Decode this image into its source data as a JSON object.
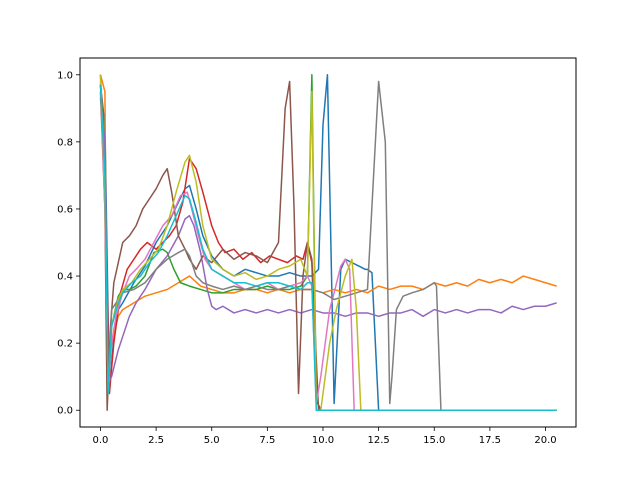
{
  "chart_data": {
    "type": "line",
    "title": "",
    "xlabel": "",
    "ylabel": "",
    "xlim": [
      -0.92,
      21.37
    ],
    "ylim": [
      -0.05,
      1.05
    ],
    "x_ticks": [
      0.0,
      2.5,
      5.0,
      7.5,
      10.0,
      12.5,
      15.0,
      17.5,
      20.0
    ],
    "x_tick_labels": [
      "0.0",
      "2.5",
      "5.0",
      "7.5",
      "10.0",
      "12.5",
      "15.0",
      "17.5",
      "20.0"
    ],
    "y_ticks": [
      0.0,
      0.2,
      0.4,
      0.6,
      0.8,
      1.0
    ],
    "y_tick_labels": [
      "0.0",
      "0.2",
      "0.4",
      "0.6",
      "0.8",
      "1.0"
    ],
    "grid": false,
    "legend": "none",
    "series": [
      {
        "color": "#1f77b4",
        "x": [
          0,
          0.2,
          0.4,
          0.6,
          0.8,
          1.0,
          1.5,
          2.0,
          2.5,
          3.0,
          3.5,
          3.8,
          4.0,
          4.3,
          4.6,
          5.0,
          5.5,
          6.0,
          6.5,
          7.0,
          7.5,
          8.0,
          8.5,
          9.0,
          9.5,
          9.8,
          10.0,
          10.2,
          10.5,
          10.8,
          11.0,
          11.3,
          11.6,
          11.9,
          12.0,
          12.2,
          12.5,
          13,
          14,
          15,
          16,
          17,
          18,
          19,
          20,
          20.5
        ],
        "y": [
          0.97,
          0.85,
          0.05,
          0.22,
          0.3,
          0.32,
          0.38,
          0.43,
          0.5,
          0.55,
          0.62,
          0.66,
          0.67,
          0.6,
          0.52,
          0.46,
          0.42,
          0.4,
          0.42,
          0.41,
          0.4,
          0.4,
          0.41,
          0.4,
          0.4,
          0.42,
          0.85,
          1.0,
          0.02,
          0.42,
          0.45,
          0.44,
          0.43,
          0.42,
          0.42,
          0.41,
          0.0,
          0,
          0,
          0,
          0,
          0,
          0,
          0,
          0,
          0
        ]
      },
      {
        "color": "#ff7f0e",
        "x": [
          0,
          0.2,
          0.3,
          0.5,
          0.8,
          1.0,
          1.5,
          2.0,
          2.5,
          3.0,
          3.5,
          4.0,
          4.5,
          5.0,
          5.5,
          6.0,
          6.5,
          7.0,
          7.5,
          8.0,
          8.5,
          9.0,
          9.5,
          10.0,
          10.5,
          11.0,
          11.5,
          12.0,
          12.5,
          13.0,
          13.5,
          14.0,
          14.5,
          15.0,
          15.5,
          16.0,
          16.5,
          17.0,
          17.5,
          18.0,
          18.5,
          19.0,
          19.5,
          20.0,
          20.5
        ],
        "y": [
          1.0,
          0.95,
          0.05,
          0.2,
          0.28,
          0.3,
          0.32,
          0.34,
          0.35,
          0.36,
          0.38,
          0.4,
          0.37,
          0.36,
          0.35,
          0.35,
          0.36,
          0.36,
          0.35,
          0.36,
          0.35,
          0.36,
          0.36,
          0.35,
          0.36,
          0.35,
          0.36,
          0.35,
          0.37,
          0.36,
          0.37,
          0.37,
          0.36,
          0.38,
          0.37,
          0.38,
          0.37,
          0.39,
          0.38,
          0.39,
          0.38,
          0.4,
          0.39,
          0.38,
          0.37
        ]
      },
      {
        "color": "#2ca02c",
        "x": [
          0,
          0.2,
          0.35,
          0.5,
          0.8,
          1.0,
          1.3,
          1.6,
          2.0,
          2.4,
          2.8,
          3.0,
          3.3,
          3.6,
          4.0,
          4.5,
          5.0,
          5.5,
          6.0,
          6.5,
          7.0,
          7.5,
          8.0,
          8.5,
          9.0,
          9.3,
          9.5,
          9.7,
          9.9,
          10.0,
          10.5,
          11.0,
          11.2,
          11.4,
          11.6,
          12,
          13,
          14,
          15,
          16,
          17,
          18,
          19,
          20,
          20.5
        ],
        "y": [
          0.97,
          0.8,
          0.1,
          0.25,
          0.34,
          0.36,
          0.36,
          0.37,
          0.4,
          0.47,
          0.48,
          0.47,
          0.42,
          0.38,
          0.37,
          0.36,
          0.35,
          0.35,
          0.36,
          0.36,
          0.36,
          0.37,
          0.36,
          0.36,
          0.37,
          0.4,
          1.0,
          0.03,
          0.0,
          0.0,
          0.0,
          0.0,
          0.0,
          0.0,
          0.0,
          0,
          0,
          0,
          0,
          0,
          0,
          0,
          0,
          0,
          0
        ]
      },
      {
        "color": "#d62728",
        "x": [
          0,
          0.2,
          0.4,
          0.6,
          0.9,
          1.2,
          1.5,
          1.8,
          2.1,
          2.5,
          2.8,
          3.1,
          3.4,
          3.7,
          4.0,
          4.3,
          4.6,
          5.0,
          5.3,
          5.6,
          6.0,
          6.4,
          6.8,
          7.2,
          7.6,
          8.0,
          8.4,
          8.8,
          9.1,
          9.3,
          9.5,
          9.7,
          9.9,
          10.0,
          10.5,
          11.0,
          11.5,
          12,
          13,
          14,
          15,
          16,
          17,
          18,
          19,
          20,
          20.5
        ],
        "y": [
          1.0,
          0.7,
          0.05,
          0.2,
          0.35,
          0.42,
          0.45,
          0.48,
          0.5,
          0.48,
          0.5,
          0.52,
          0.55,
          0.62,
          0.75,
          0.72,
          0.65,
          0.55,
          0.5,
          0.47,
          0.48,
          0.45,
          0.47,
          0.44,
          0.46,
          0.45,
          0.44,
          0.46,
          0.45,
          0.5,
          0.44,
          0.03,
          0.0,
          0.0,
          0.0,
          0.0,
          0.0,
          0,
          0,
          0,
          0,
          0,
          0,
          0,
          0,
          0,
          0
        ]
      },
      {
        "color": "#9467bd",
        "x": [
          0,
          0.2,
          0.35,
          0.5,
          0.8,
          1.0,
          1.3,
          1.6,
          2.0,
          2.5,
          3.0,
          3.5,
          3.8,
          4.0,
          4.2,
          4.5,
          4.8,
          5.0,
          5.2,
          5.5,
          6.0,
          6.5,
          7.0,
          7.5,
          8.0,
          8.5,
          9.0,
          9.5,
          10.0,
          10.5,
          11.0,
          11.5,
          12.0,
          12.5,
          13.0,
          13.5,
          14.0,
          14.5,
          15.0,
          15.5,
          16.0,
          16.5,
          17.0,
          17.5,
          18.0,
          18.5,
          19.0,
          19.5,
          20.0,
          20.5
        ],
        "y": [
          0.93,
          0.8,
          0.08,
          0.1,
          0.18,
          0.22,
          0.28,
          0.32,
          0.36,
          0.42,
          0.46,
          0.52,
          0.57,
          0.58,
          0.55,
          0.47,
          0.36,
          0.31,
          0.3,
          0.31,
          0.29,
          0.3,
          0.29,
          0.3,
          0.29,
          0.3,
          0.29,
          0.3,
          0.29,
          0.29,
          0.28,
          0.29,
          0.29,
          0.28,
          0.29,
          0.29,
          0.3,
          0.28,
          0.3,
          0.29,
          0.3,
          0.29,
          0.3,
          0.3,
          0.29,
          0.31,
          0.3,
          0.31,
          0.31,
          0.32
        ]
      },
      {
        "color": "#8c564b",
        "x": [
          0,
          0.2,
          0.3,
          0.45,
          0.6,
          0.8,
          1.0,
          1.3,
          1.6,
          1.9,
          2.2,
          2.5,
          2.8,
          3.0,
          3.2,
          3.5,
          3.8,
          4.0,
          4.3,
          4.6,
          5.0,
          5.5,
          6.0,
          6.5,
          7.0,
          7.5,
          8.0,
          8.3,
          8.5,
          8.7,
          8.9,
          9.1,
          9.3,
          9.5,
          9.8,
          10.0,
          10.5,
          11,
          12,
          13,
          14,
          15,
          16,
          17,
          18,
          19,
          20,
          20.5
        ],
        "y": [
          0.95,
          0.6,
          0.0,
          0.25,
          0.38,
          0.44,
          0.5,
          0.52,
          0.55,
          0.6,
          0.63,
          0.66,
          0.7,
          0.72,
          0.65,
          0.52,
          0.48,
          0.45,
          0.42,
          0.46,
          0.44,
          0.48,
          0.45,
          0.47,
          0.46,
          0.44,
          0.5,
          0.9,
          0.98,
          0.6,
          0.05,
          0.4,
          0.5,
          0.45,
          0.0,
          0.0,
          0.0,
          0,
          0,
          0,
          0,
          0,
          0,
          0,
          0,
          0,
          0,
          0
        ]
      },
      {
        "color": "#e377c2",
        "x": [
          0,
          0.2,
          0.35,
          0.5,
          0.7,
          1.0,
          1.3,
          1.6,
          2.0,
          2.4,
          2.8,
          3.2,
          3.6,
          3.9,
          4.1,
          4.4,
          4.7,
          5.0,
          5.5,
          6.0,
          6.5,
          7.0,
          7.5,
          8.0,
          8.5,
          9.0,
          9.3,
          9.5,
          9.7,
          9.9,
          10.1,
          10.3,
          10.5,
          10.8,
          11.0,
          11.2,
          11.4,
          11.6,
          12,
          13,
          14,
          15,
          16,
          17,
          18,
          19,
          20,
          20.5
        ],
        "y": [
          0.98,
          0.6,
          0.05,
          0.2,
          0.28,
          0.35,
          0.4,
          0.42,
          0.45,
          0.5,
          0.55,
          0.58,
          0.64,
          0.65,
          0.6,
          0.52,
          0.45,
          0.42,
          0.4,
          0.38,
          0.36,
          0.37,
          0.38,
          0.36,
          0.37,
          0.38,
          0.4,
          0.37,
          0.02,
          0.1,
          0.2,
          0.3,
          0.35,
          0.43,
          0.45,
          0.42,
          0.0,
          0.0,
          0,
          0,
          0,
          0,
          0,
          0,
          0,
          0,
          0,
          0
        ]
      },
      {
        "color": "#7f7f7f",
        "x": [
          0,
          0.2,
          0.35,
          0.5,
          0.8,
          1.0,
          1.5,
          2.0,
          2.5,
          3.0,
          3.5,
          3.8,
          4.0,
          4.3,
          4.6,
          5.0,
          5.5,
          6.0,
          6.5,
          7.0,
          7.5,
          8.0,
          8.5,
          9.0,
          9.5,
          10.0,
          10.5,
          11.0,
          11.5,
          12.0,
          12.5,
          12.8,
          13.0,
          13.1,
          13.3,
          13.6,
          14.0,
          14.5,
          15.0,
          15.1,
          15.3,
          15.5,
          16,
          17,
          18,
          19,
          20,
          20.5
        ],
        "y": [
          0.97,
          0.7,
          0.05,
          0.3,
          0.33,
          0.35,
          0.36,
          0.38,
          0.42,
          0.45,
          0.47,
          0.48,
          0.46,
          0.4,
          0.38,
          0.37,
          0.36,
          0.37,
          0.36,
          0.37,
          0.36,
          0.36,
          0.37,
          0.36,
          0.36,
          0.35,
          0.33,
          0.34,
          0.35,
          0.36,
          0.98,
          0.8,
          0.02,
          0.1,
          0.3,
          0.34,
          0.35,
          0.36,
          0.38,
          0.37,
          0.0,
          0.0,
          0,
          0,
          0,
          0,
          0,
          0
        ]
      },
      {
        "color": "#bcbd22",
        "x": [
          0,
          0.2,
          0.35,
          0.5,
          0.8,
          1.0,
          1.4,
          1.8,
          2.2,
          2.6,
          3.0,
          3.4,
          3.8,
          4.0,
          4.3,
          4.6,
          5.0,
          5.5,
          6.0,
          6.5,
          7.0,
          7.5,
          8.0,
          8.5,
          9.0,
          9.3,
          9.5,
          9.7,
          9.9,
          10.1,
          10.3,
          10.6,
          11.0,
          11.3,
          11.5,
          11.7,
          12,
          13,
          14,
          15,
          16,
          17,
          18,
          19,
          20,
          20.5
        ],
        "y": [
          1.0,
          0.65,
          0.05,
          0.25,
          0.33,
          0.36,
          0.38,
          0.42,
          0.45,
          0.48,
          0.55,
          0.65,
          0.74,
          0.76,
          0.68,
          0.55,
          0.45,
          0.42,
          0.4,
          0.41,
          0.39,
          0.4,
          0.42,
          0.43,
          0.45,
          0.4,
          0.95,
          0.0,
          0.0,
          0.1,
          0.2,
          0.3,
          0.4,
          0.45,
          0.3,
          0.0,
          0,
          0,
          0,
          0,
          0,
          0,
          0,
          0,
          0,
          0
        ]
      },
      {
        "color": "#17becf",
        "x": [
          0,
          0.2,
          0.35,
          0.5,
          0.8,
          1.0,
          1.4,
          1.8,
          2.2,
          2.6,
          3.0,
          3.4,
          3.8,
          4.0,
          4.3,
          4.6,
          5.0,
          5.5,
          6.0,
          6.5,
          7.0,
          7.5,
          8.0,
          8.5,
          9.0,
          9.3,
          9.5,
          9.7,
          9.9,
          10.1,
          10.3,
          10.6,
          11.0,
          11.3,
          11.5,
          11.7,
          12,
          13,
          14,
          15,
          16,
          17,
          18,
          19,
          20,
          20.5
        ],
        "y": [
          0.97,
          0.7,
          0.05,
          0.25,
          0.32,
          0.35,
          0.38,
          0.4,
          0.44,
          0.47,
          0.52,
          0.58,
          0.64,
          0.63,
          0.56,
          0.48,
          0.42,
          0.4,
          0.38,
          0.38,
          0.37,
          0.38,
          0.38,
          0.37,
          0.36,
          0.38,
          0.38,
          0.0,
          0.0,
          0.0,
          0.0,
          0.0,
          0.0,
          0.0,
          0.0,
          0.0,
          0,
          0,
          0,
          0,
          0,
          0,
          0,
          0,
          0,
          0
        ]
      }
    ]
  }
}
